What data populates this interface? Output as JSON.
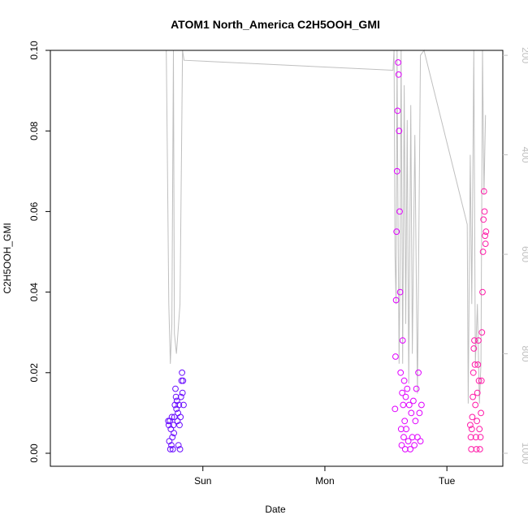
{
  "chart_data": {
    "type": "scatter",
    "title": "ATOM1 North_America C2H5OOH_GMI",
    "xlabel": "Date",
    "ylabel": "C2H5OOH_GMI",
    "x_unit": "hours since Sat 00:00",
    "xlim": [
      -6,
      83
    ],
    "ylim": [
      0,
      0.1
    ],
    "x_ticks": [
      {
        "value": 24,
        "label": "Sun"
      },
      {
        "value": 48,
        "label": "Mon"
      },
      {
        "value": 72,
        "label": "Tue"
      }
    ],
    "y_ticks": [
      "0.00",
      "0.02",
      "0.04",
      "0.06",
      "0.08",
      "0.10"
    ],
    "y_tick_values": [
      0,
      0.02,
      0.04,
      0.06,
      0.08,
      0.1
    ],
    "y2_label": "",
    "y2_lim": [
      1000,
      190
    ],
    "y2_ticks": [
      "200",
      "400",
      "600",
      "800",
      "1000"
    ],
    "y2_tick_values": [
      200,
      400,
      600,
      800,
      1000
    ],
    "grid": false,
    "series": [
      {
        "color": "#6a0dff",
        "points": [
          [
            17.2,
            0.008
          ],
          [
            17.3,
            0.007
          ],
          [
            17.4,
            0.003
          ],
          [
            17.5,
            0.008
          ],
          [
            17.6,
            0.001
          ],
          [
            17.7,
            0.006
          ],
          [
            17.8,
            0.002
          ],
          [
            17.9,
            0.009
          ],
          [
            18.0,
            0.004
          ],
          [
            18.1,
            0.001
          ],
          [
            18.2,
            0.007
          ],
          [
            18.3,
            0.005
          ],
          [
            18.4,
            0.009
          ],
          [
            18.5,
            0.012
          ],
          [
            18.6,
            0.016
          ],
          [
            18.7,
            0.014
          ],
          [
            18.8,
            0.011
          ],
          [
            18.9,
            0.013
          ],
          [
            19.0,
            0.008
          ],
          [
            19.1,
            0.01
          ],
          [
            19.2,
            0.002
          ],
          [
            19.3,
            0.012
          ],
          [
            19.4,
            0.007
          ],
          [
            19.5,
            0.001
          ],
          [
            19.6,
            0.009
          ],
          [
            19.7,
            0.014
          ],
          [
            19.8,
            0.018
          ],
          [
            19.9,
            0.02
          ],
          [
            20.0,
            0.015
          ],
          [
            20.1,
            0.018
          ],
          [
            20.2,
            0.012
          ]
        ]
      },
      {
        "color": "#e000ff",
        "points": [
          [
            61.8,
            0.011
          ],
          [
            61.9,
            0.024
          ],
          [
            62.0,
            0.038
          ],
          [
            62.1,
            0.055
          ],
          [
            62.2,
            0.07
          ],
          [
            62.3,
            0.085
          ],
          [
            62.4,
            0.097
          ],
          [
            62.5,
            0.094
          ],
          [
            62.6,
            0.08
          ],
          [
            62.7,
            0.06
          ],
          [
            62.8,
            0.04
          ],
          [
            62.9,
            0.02
          ],
          [
            63.0,
            0.006
          ],
          [
            63.1,
            0.002
          ],
          [
            63.2,
            0.015
          ],
          [
            63.3,
            0.028
          ],
          [
            63.4,
            0.012
          ],
          [
            63.5,
            0.004
          ],
          [
            63.6,
            0.018
          ],
          [
            63.7,
            0.008
          ],
          [
            63.8,
            0.001
          ],
          [
            63.9,
            0.014
          ],
          [
            64.0,
            0.006
          ],
          [
            64.2,
            0.016
          ],
          [
            64.4,
            0.003
          ],
          [
            64.6,
            0.012
          ],
          [
            64.8,
            0.001
          ],
          [
            65.0,
            0.01
          ],
          [
            65.2,
            0.004
          ],
          [
            65.4,
            0.013
          ],
          [
            65.6,
            0.002
          ],
          [
            65.8,
            0.008
          ],
          [
            66.0,
            0.016
          ],
          [
            66.2,
            0.004
          ],
          [
            66.4,
            0.02
          ],
          [
            66.6,
            0.01
          ],
          [
            66.8,
            0.003
          ],
          [
            67.0,
            0.012
          ]
        ]
      },
      {
        "color": "#ff1aa8",
        "points": [
          [
            76.6,
            0.007
          ],
          [
            76.7,
            0.004
          ],
          [
            76.8,
            0.001
          ],
          [
            76.9,
            0.006
          ],
          [
            77.0,
            0.009
          ],
          [
            77.1,
            0.014
          ],
          [
            77.2,
            0.02
          ],
          [
            77.3,
            0.026
          ],
          [
            77.4,
            0.028
          ],
          [
            77.5,
            0.022
          ],
          [
            77.6,
            0.012
          ],
          [
            77.7,
            0.004
          ],
          [
            77.8,
            0.001
          ],
          [
            77.9,
            0.008
          ],
          [
            78.0,
            0.015
          ],
          [
            78.1,
            0.022
          ],
          [
            78.2,
            0.028
          ],
          [
            78.3,
            0.018
          ],
          [
            78.4,
            0.006
          ],
          [
            78.5,
            0.001
          ],
          [
            78.6,
            0.004
          ],
          [
            78.7,
            0.01
          ],
          [
            78.8,
            0.018
          ],
          [
            78.9,
            0.03
          ],
          [
            79.0,
            0.04
          ],
          [
            79.1,
            0.05
          ],
          [
            79.2,
            0.058
          ],
          [
            79.3,
            0.065
          ],
          [
            79.4,
            0.06
          ],
          [
            79.5,
            0.054
          ],
          [
            79.6,
            0.052
          ],
          [
            79.7,
            0.055
          ]
        ]
      }
    ],
    "right_axis_line": {
      "color": "#bfbfbf",
      "points": [
        [
          16.8,
          190
        ],
        [
          17.0,
          380
        ],
        [
          17.3,
          700
        ],
        [
          17.6,
          820
        ],
        [
          17.9,
          740
        ],
        [
          18.0,
          560
        ],
        [
          18.2,
          190
        ],
        [
          18.4,
          760
        ],
        [
          18.8,
          800
        ],
        [
          19.5,
          700
        ],
        [
          20.0,
          190
        ],
        [
          20.3,
          210
        ],
        [
          61.4,
          230
        ],
        [
          61.6,
          190
        ],
        [
          61.8,
          600
        ],
        [
          62.0,
          700
        ],
        [
          62.2,
          190
        ],
        [
          62.3,
          400
        ],
        [
          62.6,
          820
        ],
        [
          62.8,
          600
        ],
        [
          63.0,
          190
        ],
        [
          63.3,
          820
        ],
        [
          63.6,
          260
        ],
        [
          63.9,
          740
        ],
        [
          64.2,
          330
        ],
        [
          64.5,
          860
        ],
        [
          64.9,
          300
        ],
        [
          65.2,
          800
        ],
        [
          65.7,
          360
        ],
        [
          66.2,
          880
        ],
        [
          66.8,
          200
        ],
        [
          67.5,
          190
        ],
        [
          76.0,
          540
        ],
        [
          76.2,
          900
        ],
        [
          76.6,
          400
        ],
        [
          76.9,
          700
        ],
        [
          77.3,
          190
        ],
        [
          77.6,
          820
        ],
        [
          78.0,
          700
        ],
        [
          78.4,
          900
        ],
        [
          78.7,
          820
        ],
        [
          79.0,
          190
        ],
        [
          79.3,
          480
        ],
        [
          79.6,
          320
        ]
      ]
    }
  }
}
